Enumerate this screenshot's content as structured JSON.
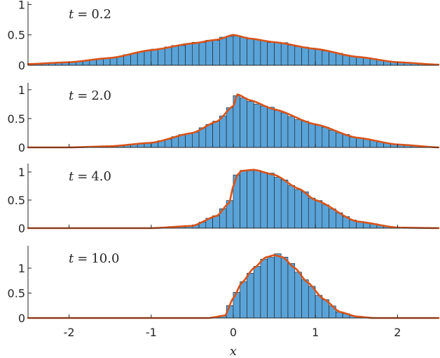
{
  "chart_data": {
    "type": "bar",
    "subtype": "histogram-with-density-curve",
    "layout": "4 vertically stacked panels sharing the x axis",
    "xlabel": "x",
    "xlim": [
      -2.5,
      2.5
    ],
    "xticks": [
      -2,
      -1,
      0,
      1,
      2
    ],
    "xtick_labels": [
      "-2",
      "-1",
      "0",
      "1",
      "2"
    ],
    "bin_width": 0.0833,
    "colors": {
      "bars": "#5aa3d8",
      "bar_edge": "#1a1a1a",
      "curve": "#d95319"
    },
    "panels": [
      {
        "label_var": "t",
        "label_eq": "=",
        "label_value": "0.2",
        "ylim": [
          0,
          1.05
        ],
        "yticks": [
          0,
          0.5,
          1
        ],
        "ytick_labels": [
          "0",
          "0.5",
          "1"
        ],
        "curve": {
          "x": [
            -2.5,
            -2.0,
            -1.5,
            -1.0,
            -0.5,
            -0.2,
            0.0,
            0.2,
            0.5,
            1.0,
            1.5,
            2.0,
            2.5
          ],
          "y": [
            0.02,
            0.05,
            0.12,
            0.25,
            0.36,
            0.42,
            0.5,
            0.44,
            0.38,
            0.27,
            0.14,
            0.05,
            0.01
          ]
        }
      },
      {
        "label_var": "t",
        "label_eq": "=",
        "label_value": "2.0",
        "ylim": [
          0,
          1.12
        ],
        "yticks": [
          0,
          0.5,
          1
        ],
        "ytick_labels": [
          "0",
          "0.5",
          "1"
        ],
        "curve": {
          "x": [
            -2.5,
            -2.0,
            -1.5,
            -1.0,
            -0.5,
            -0.2,
            0.0,
            0.05,
            0.2,
            0.5,
            1.0,
            1.5,
            2.0,
            2.5
          ],
          "y": [
            0.0,
            0.0,
            0.02,
            0.08,
            0.25,
            0.45,
            0.72,
            0.92,
            0.82,
            0.66,
            0.4,
            0.17,
            0.05,
            0.0
          ]
        }
      },
      {
        "label_var": "t",
        "label_eq": "=",
        "label_value": "4.0",
        "ylim": [
          0,
          1.15
        ],
        "yticks": [
          0,
          0.5,
          1
        ],
        "ytick_labels": [
          "0",
          "0.5",
          "1"
        ],
        "curve": {
          "x": [
            -2.5,
            -1.0,
            -0.5,
            -0.2,
            -0.05,
            0.0,
            0.05,
            0.1,
            0.25,
            0.5,
            0.8,
            1.0,
            1.5,
            2.0,
            2.5
          ],
          "y": [
            0.0,
            0.0,
            0.04,
            0.22,
            0.45,
            0.75,
            0.95,
            1.02,
            1.04,
            0.95,
            0.7,
            0.5,
            0.12,
            0.01,
            0.0
          ]
        }
      },
      {
        "label_var": "t",
        "label_eq": "=",
        "label_value": "10.0",
        "ylim": [
          0,
          1.45
        ],
        "yticks": [
          0,
          0.5,
          1
        ],
        "ytick_labels": [
          "0",
          "0.5",
          "1"
        ],
        "curve": {
          "x": [
            -2.5,
            -0.3,
            -0.1,
            0.0,
            0.1,
            0.25,
            0.4,
            0.5,
            0.6,
            0.75,
            0.9,
            1.1,
            1.3,
            1.5,
            1.7,
            2.5
          ],
          "y": [
            0.0,
            0.0,
            0.05,
            0.4,
            0.7,
            1.0,
            1.22,
            1.26,
            1.22,
            1.0,
            0.72,
            0.38,
            0.12,
            0.03,
            0.0,
            0.0
          ]
        }
      }
    ]
  }
}
